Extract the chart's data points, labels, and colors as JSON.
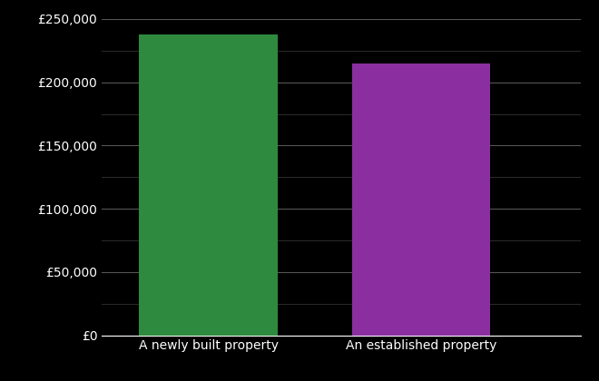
{
  "categories": [
    "A newly built property",
    "An established property"
  ],
  "values": [
    238000,
    215000
  ],
  "bar_colors": [
    "#2d8a3e",
    "#8b2fa0"
  ],
  "background_color": "#000000",
  "text_color": "#ffffff",
  "major_grid_color": "#555555",
  "minor_grid_color": "#333333",
  "ylim": [
    0,
    250000
  ],
  "yticks_major": [
    0,
    50000,
    100000,
    150000,
    200000,
    250000
  ],
  "yticks_minor": [
    25000,
    75000,
    125000,
    175000,
    225000
  ],
  "bar_width": 0.65,
  "x_positions": [
    1,
    2
  ],
  "xlim": [
    0.5,
    2.75
  ],
  "figsize": [
    6.6,
    4.2
  ],
  "dpi": 100,
  "tick_fontsize": 10,
  "xlabel_fontsize": 10
}
